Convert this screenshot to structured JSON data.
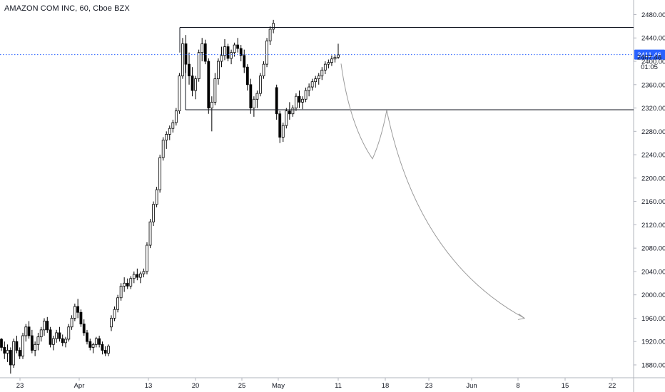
{
  "chart_data": {
    "type": "candlestick",
    "title": "AMAZON COM INC, 60, Cboe BZX",
    "y_ticks": [
      1880,
      1920,
      1960,
      2000,
      2040,
      2080,
      2120,
      2160,
      2200,
      2240,
      2280,
      2320,
      2360,
      2400,
      2440,
      2480
    ],
    "y_tick_labels": [
      "1880.00",
      "1920.00",
      "1960.00",
      "2000.00",
      "2040.00",
      "2080.00",
      "2120.00",
      "2160.00",
      "2200.00",
      "2240.00",
      "2280.00",
      "2320.00",
      "2360.00",
      "2400.00",
      "2440.00",
      "2480.00"
    ],
    "ylim": [
      1858,
      2505
    ],
    "x_ticks": [
      "23",
      "Apr",
      "13",
      "20",
      "25",
      "May",
      "11",
      "18",
      "23",
      "Jun",
      "8",
      "15",
      "22"
    ],
    "price_line": {
      "value": 2411.46,
      "label": "2411.46",
      "color": "#2962ff"
    },
    "other_labels": [
      {
        "value": 2407.48,
        "label": "2407.48"
      },
      {
        "value": 2391,
        "label": "01:05"
      }
    ],
    "resistance_level": 2458,
    "support_level": 2317,
    "projection": "price dips to ~2233, bounces to ~2316, then falls toward ~1960",
    "projection_targets": [
      2233,
      2316,
      1960
    ],
    "candle_color": "#000000",
    "candles": [
      [
        1924,
        1926,
        1904,
        1910
      ],
      [
        1910,
        1920,
        1890,
        1900
      ],
      [
        1900,
        1915,
        1885,
        1905
      ],
      [
        1905,
        1910,
        1865,
        1880
      ],
      [
        1880,
        1925,
        1875,
        1920
      ],
      [
        1920,
        1930,
        1900,
        1905
      ],
      [
        1905,
        1910,
        1890,
        1895
      ],
      [
        1895,
        1935,
        1890,
        1930
      ],
      [
        1930,
        1950,
        1920,
        1945
      ],
      [
        1945,
        1955,
        1925,
        1930
      ],
      [
        1930,
        1940,
        1900,
        1905
      ],
      [
        1905,
        1920,
        1895,
        1915
      ],
      [
        1915,
        1935,
        1905,
        1928
      ],
      [
        1928,
        1945,
        1920,
        1940
      ],
      [
        1940,
        1960,
        1930,
        1955
      ],
      [
        1955,
        1962,
        1935,
        1940
      ],
      [
        1940,
        1945,
        1910,
        1915
      ],
      [
        1915,
        1930,
        1905,
        1925
      ],
      [
        1925,
        1940,
        1918,
        1935
      ],
      [
        1935,
        1945,
        1920,
        1925
      ],
      [
        1925,
        1932,
        1912,
        1918
      ],
      [
        1918,
        1928,
        1910,
        1924
      ],
      [
        1924,
        1950,
        1920,
        1945
      ],
      [
        1945,
        1965,
        1940,
        1960
      ],
      [
        1960,
        1985,
        1955,
        1980
      ],
      [
        1980,
        1993,
        1960,
        1970
      ],
      [
        1970,
        1975,
        1945,
        1950
      ],
      [
        1950,
        1958,
        1930,
        1935
      ],
      [
        1935,
        1940,
        1915,
        1920
      ],
      [
        1920,
        1925,
        1905,
        1910
      ],
      [
        1910,
        1918,
        1900,
        1915
      ],
      [
        1915,
        1928,
        1910,
        1925
      ],
      [
        1925,
        1930,
        1910,
        1915
      ],
      [
        1915,
        1920,
        1898,
        1905
      ],
      [
        1905,
        1912,
        1895,
        1900
      ],
      [
        1900,
        1915,
        1895,
        1912
      ],
      [
        1945,
        1965,
        1938,
        1960
      ],
      [
        1960,
        1980,
        1955,
        1975
      ],
      [
        1975,
        2000,
        1970,
        1995
      ],
      [
        1995,
        2020,
        1990,
        2015
      ],
      [
        2015,
        2030,
        2005,
        2020
      ],
      [
        2020,
        2028,
        2010,
        2015
      ],
      [
        2015,
        2032,
        2010,
        2028
      ],
      [
        2028,
        2040,
        2020,
        2035
      ],
      [
        2035,
        2045,
        2025,
        2030
      ],
      [
        2030,
        2040,
        2020,
        2036
      ],
      [
        2036,
        2045,
        2030,
        2040
      ],
      [
        2040,
        2090,
        2035,
        2085
      ],
      [
        2085,
        2130,
        2080,
        2125
      ],
      [
        2125,
        2160,
        2118,
        2155
      ],
      [
        2155,
        2185,
        2150,
        2180
      ],
      [
        2180,
        2240,
        2175,
        2235
      ],
      [
        2235,
        2270,
        2230,
        2265
      ],
      [
        2265,
        2280,
        2250,
        2275
      ],
      [
        2275,
        2290,
        2265,
        2285
      ],
      [
        2285,
        2300,
        2278,
        2295
      ],
      [
        2295,
        2320,
        2290,
        2315
      ],
      [
        2315,
        2380,
        2310,
        2375
      ],
      [
        2375,
        2440,
        2370,
        2430
      ],
      [
        2430,
        2445,
        2380,
        2395
      ],
      [
        2395,
        2415,
        2360,
        2375
      ],
      [
        2375,
        2390,
        2340,
        2350
      ],
      [
        2350,
        2375,
        2335,
        2370
      ],
      [
        2370,
        2420,
        2365,
        2415
      ],
      [
        2415,
        2440,
        2400,
        2430
      ],
      [
        2430,
        2437,
        2395,
        2400
      ],
      [
        2400,
        2405,
        2310,
        2320
      ],
      [
        2320,
        2340,
        2280,
        2330
      ],
      [
        2330,
        2380,
        2325,
        2370
      ],
      [
        2370,
        2405,
        2360,
        2400
      ],
      [
        2400,
        2425,
        2390,
        2410
      ],
      [
        2410,
        2438,
        2402,
        2425
      ],
      [
        2425,
        2430,
        2400,
        2405
      ],
      [
        2405,
        2420,
        2395,
        2415
      ],
      [
        2415,
        2432,
        2408,
        2428
      ],
      [
        2428,
        2440,
        2415,
        2422
      ],
      [
        2422,
        2428,
        2400,
        2410
      ],
      [
        2410,
        2420,
        2380,
        2390
      ],
      [
        2390,
        2395,
        2350,
        2360
      ],
      [
        2360,
        2370,
        2310,
        2320
      ],
      [
        2320,
        2340,
        2305,
        2335
      ],
      [
        2335,
        2350,
        2320,
        2345
      ],
      [
        2345,
        2380,
        2340,
        2375
      ],
      [
        2375,
        2400,
        2370,
        2395
      ],
      [
        2395,
        2440,
        2390,
        2435
      ],
      [
        2435,
        2460,
        2428,
        2455
      ],
      [
        2455,
        2471,
        2448,
        2465
      ],
      [
        2355,
        2360,
        2300,
        2310
      ],
      [
        2310,
        2315,
        2260,
        2270
      ],
      [
        2270,
        2295,
        2262,
        2290
      ],
      [
        2290,
        2320,
        2285,
        2315
      ],
      [
        2315,
        2330,
        2300,
        2310
      ],
      [
        2310,
        2325,
        2305,
        2320
      ],
      [
        2320,
        2345,
        2315,
        2340
      ],
      [
        2340,
        2350,
        2320,
        2330
      ],
      [
        2330,
        2340,
        2318,
        2335
      ],
      [
        2335,
        2355,
        2330,
        2350
      ],
      [
        2350,
        2362,
        2340,
        2356
      ],
      [
        2356,
        2370,
        2350,
        2365
      ],
      [
        2365,
        2375,
        2355,
        2370
      ],
      [
        2370,
        2380,
        2360,
        2375
      ],
      [
        2375,
        2390,
        2368,
        2385
      ],
      [
        2385,
        2400,
        2378,
        2395
      ],
      [
        2395,
        2403,
        2388,
        2398
      ],
      [
        2398,
        2410,
        2392,
        2404
      ],
      [
        2404,
        2412,
        2398,
        2407
      ],
      [
        2407,
        2430,
        2404,
        2411
      ]
    ]
  }
}
